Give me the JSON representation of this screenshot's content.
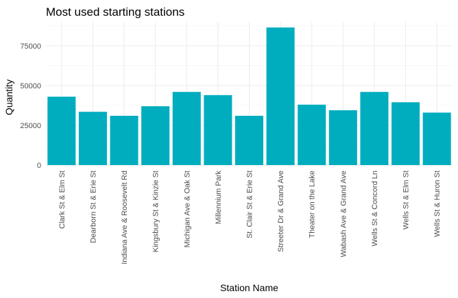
{
  "chart_data": {
    "type": "bar",
    "title": "Most used starting stations",
    "xlabel": "Station Name",
    "ylabel": "Quantity",
    "categories": [
      "Clark St & Elm St",
      "Dearborn St & Erie St",
      "Indiana Ave & Roosevelt Rd",
      "Kingsbury St & Kinzie St",
      "Michigan Ave & Oak St",
      "Millennium Park",
      "St. Clair St & Erie St",
      "Streeter Dr & Grand Ave",
      "Theater on the Lake",
      "Wabash Ave & Grand Ave",
      "Wells St & Concord Ln",
      "Wells St & Elm St",
      "Wells St & Huron St"
    ],
    "values": [
      43000,
      33500,
      31000,
      37000,
      46000,
      44000,
      31000,
      86500,
      38000,
      34500,
      46000,
      39500,
      33000
    ],
    "ylim": [
      0,
      90000
    ],
    "yticks": [
      0,
      25000,
      50000,
      75000
    ],
    "ytick_labels": [
      "0",
      "25000",
      "50000",
      "75000"
    ],
    "bar_color": "#00ADBF",
    "grid": true,
    "legend": "none"
  }
}
